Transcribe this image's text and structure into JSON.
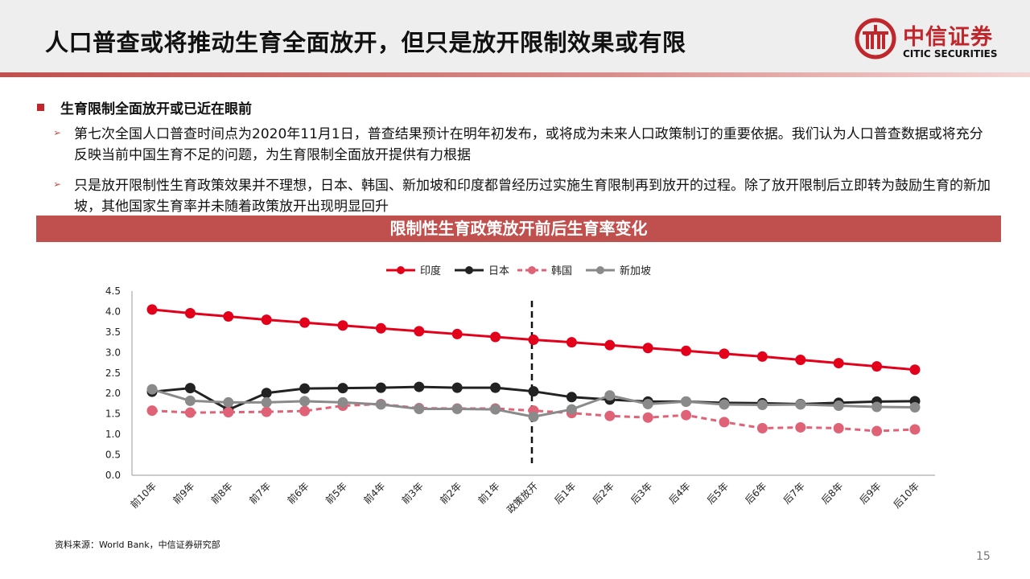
{
  "header": {
    "title": "人口普查或将推动生育全面放开，但只是放开限制效果或有限",
    "logo_cn": "中信证券",
    "logo_en": "CITIC SECURITIES"
  },
  "bullets": {
    "main": "生育限制全面放开或已近在眼前",
    "sub1": "第七次全国人口普查时间点为2020年11月1日，普查结果预计在明年初发布，或将成为未来人口政策制订的重要依据。我们认为人口普查数据或将充分反映当前中国生育不足的问题，为生育限制全面放开提供有力根据",
    "sub2": "只是放开限制性生育政策效果并不理想，日本、韩国、新加坡和印度都曾经历过实施生育限制再到放开的过程。除了放开限制后立即转为鼓励生育的新加坡，其他国家生育率并未随着政策放开出现明显回升"
  },
  "chart_banner": "限制性生育政策放开前后生育率变化",
  "chart_data": {
    "type": "line",
    "categories": [
      "前10年",
      "前9年",
      "前8年",
      "前7年",
      "前6年",
      "前5年",
      "前4年",
      "前3年",
      "前2年",
      "前1年",
      "政策放开",
      "后1年",
      "后2年",
      "后3年",
      "后4年",
      "后5年",
      "后6年",
      "后7年",
      "后8年",
      "后9年",
      "后10年"
    ],
    "ylim": [
      0,
      4.5
    ],
    "yticks": [
      "0.0",
      "0.5",
      "1.0",
      "1.5",
      "2.0",
      "2.5",
      "3.0",
      "3.5",
      "4.0",
      "4.5"
    ],
    "legend_position": "top",
    "divider_category": "政策放开",
    "series": [
      {
        "name": "印度",
        "color": "#e3001b",
        "dashed": false,
        "values": [
          4.05,
          3.96,
          3.88,
          3.8,
          3.73,
          3.66,
          3.59,
          3.52,
          3.45,
          3.38,
          3.31,
          3.25,
          3.18,
          3.11,
          3.04,
          2.97,
          2.9,
          2.82,
          2.74,
          2.66,
          2.58
        ]
      },
      {
        "name": "日本",
        "color": "#222222",
        "dashed": false,
        "values": [
          2.04,
          2.13,
          1.6,
          2.01,
          2.12,
          2.13,
          2.14,
          2.16,
          2.14,
          2.14,
          2.05,
          1.91,
          1.85,
          1.8,
          1.8,
          1.77,
          1.76,
          1.74,
          1.77,
          1.8,
          1.81
        ]
      },
      {
        "name": "韩国",
        "color": "#e06277",
        "dashed": true,
        "values": [
          1.58,
          1.53,
          1.54,
          1.55,
          1.57,
          1.7,
          1.74,
          1.64,
          1.63,
          1.63,
          1.58,
          1.52,
          1.45,
          1.41,
          1.47,
          1.3,
          1.15,
          1.17,
          1.15,
          1.08,
          1.12
        ]
      },
      {
        "name": "新加坡",
        "color": "#8a8a8a",
        "dashed": false,
        "values": [
          2.1,
          1.82,
          1.78,
          1.78,
          1.81,
          1.78,
          1.73,
          1.62,
          1.62,
          1.61,
          1.43,
          1.61,
          1.95,
          1.74,
          1.8,
          1.73,
          1.72,
          1.73,
          1.7,
          1.67,
          1.66
        ]
      }
    ]
  },
  "source": "资料来源：World Bank，中信证券研究部",
  "page_number": "15"
}
